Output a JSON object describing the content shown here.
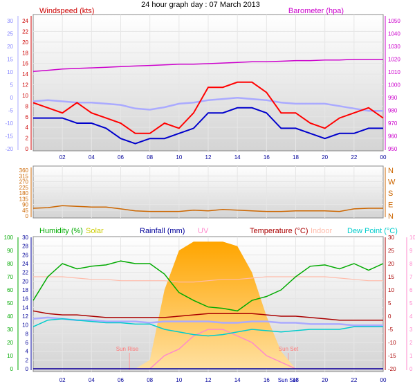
{
  "title": "24 hour graph day : 07 March 2013",
  "x_labels": [
    "02",
    "04",
    "06",
    "08",
    "10",
    "12",
    "14",
    "16",
    "18",
    "20",
    "22",
    "00"
  ],
  "chart_data": [
    {
      "type": "line",
      "labels": {
        "windspeed": "Windspeed (kts)",
        "barometer": "Barometer (hpa)"
      },
      "left_outer_ticks": [
        "30",
        "25",
        "20",
        "15",
        "10",
        "5",
        "0",
        "-5",
        "-10",
        "-15",
        "-20"
      ],
      "left_inner_ticks": [
        "24",
        "22",
        "20",
        "18",
        "16",
        "14",
        "12",
        "10",
        "8",
        "6",
        "4",
        "2",
        "0"
      ],
      "right_ticks": [
        "1050",
        "1040",
        "1030",
        "1020",
        "1010",
        "1000",
        "990",
        "980",
        "970",
        "960",
        "950"
      ],
      "ylim_wind": [
        0,
        25
      ],
      "ylim_baro": [
        946,
        1052
      ],
      "ylim_temp": [
        -22,
        32
      ],
      "colors": {
        "gust": "#ff0000",
        "average": "#0000cc",
        "barometer": "#cc00cc",
        "temperature": "#aaaaff"
      },
      "x": [
        0,
        1,
        2,
        3,
        4,
        5,
        6,
        7,
        8,
        9,
        10,
        11,
        12,
        13,
        14,
        15,
        16,
        17,
        18,
        19,
        20,
        21,
        22,
        23,
        24
      ],
      "series": [
        {
          "name": "gust",
          "values": [
            9,
            8,
            7,
            9,
            7,
            6,
            5,
            3,
            3,
            5,
            4,
            7,
            12,
            12,
            13,
            13,
            11,
            7,
            7,
            5,
            4,
            6,
            7,
            8,
            6
          ]
        },
        {
          "name": "average",
          "values": [
            6,
            6,
            6,
            5,
            5,
            4,
            2,
            1,
            2,
            2,
            3,
            4,
            7,
            7,
            8,
            8,
            7,
            4,
            4,
            3,
            2,
            3,
            3,
            4,
            4
          ]
        },
        {
          "name": "barometer",
          "values": [
            1010,
            1011,
            1012,
            1012.5,
            1013,
            1013.5,
            1014,
            1014.5,
            1015,
            1015.5,
            1016,
            1016,
            1016.5,
            1017,
            1017.5,
            1018,
            1018,
            1018.5,
            1019,
            1019,
            1019.5,
            1019.5,
            1020,
            1020,
            1020
          ]
        },
        {
          "name": "temperature",
          "values": [
            -2,
            -1.5,
            -2,
            -2.5,
            -2.5,
            -3,
            -3.5,
            -5,
            -5.5,
            -4.5,
            -3,
            -2.5,
            -1.5,
            -1,
            -0.5,
            -1,
            -1.5,
            -2.5,
            -3,
            -3,
            -3,
            -4,
            -5,
            -6,
            -6
          ]
        }
      ]
    },
    {
      "type": "line",
      "left_ticks": [
        "360",
        "315",
        "270",
        "225",
        "180",
        "135",
        "90",
        "45",
        "0"
      ],
      "right_ticks": [
        "N",
        "W",
        "S",
        "E",
        "N"
      ],
      "ylim": [
        0,
        360
      ],
      "colors": {
        "direction": "#cc6600"
      },
      "x": [
        0,
        1,
        2,
        3,
        4,
        5,
        6,
        7,
        8,
        9,
        10,
        11,
        12,
        13,
        14,
        15,
        16,
        17,
        18,
        19,
        20,
        21,
        22,
        23,
        24
      ],
      "series": [
        {
          "name": "direction",
          "values": [
            60,
            65,
            80,
            75,
            70,
            70,
            55,
            40,
            35,
            35,
            35,
            45,
            40,
            50,
            45,
            40,
            35,
            35,
            40,
            40,
            40,
            35,
            55,
            60,
            60
          ]
        }
      ]
    },
    {
      "type": "area",
      "labels": {
        "humidity": "Humidity (%)",
        "solar": "Solar",
        "rainfall": "Rainfall (mm)",
        "uv": "UV",
        "temperature": "Temperature (°C)",
        "indoor": "Indoor",
        "dewpoint": "Dew Point (°C)"
      },
      "annotations": {
        "sunrise": "Sun Rise",
        "sunset": "Sun Set",
        "axis_extra": "Sun Set"
      },
      "left_outer_ticks": [
        "100",
        "90",
        "80",
        "70",
        "60",
        "50",
        "40",
        "30",
        "20",
        "10",
        "0"
      ],
      "left_inner_ticks": [
        "30",
        "28",
        "26",
        "24",
        "22",
        "20",
        "18",
        "16",
        "14",
        "12",
        "10",
        "8",
        "6",
        "4",
        "2",
        "0"
      ],
      "right_inner_ticks": [
        "30",
        "25",
        "20",
        "15",
        "10",
        "5",
        "0",
        "-5",
        "-10",
        "-15",
        "-20"
      ],
      "right_outer_ticks": [
        "10",
        "9",
        "8",
        "7",
        "6",
        "5",
        "4",
        "3",
        "2",
        "1",
        "0"
      ],
      "ylim_humidity": [
        0,
        100
      ],
      "ylim_rain": [
        0,
        30
      ],
      "ylim_temp": [
        -20,
        30
      ],
      "colors": {
        "humidity": "#00aa00",
        "solar": "#ffa500",
        "rainfall": "#000099",
        "uv": "#ff88cc",
        "temperature": "#aa0000",
        "indoor": "#ffbbaa",
        "dewpoint": "#00cccc",
        "temp_light": "#aaaaff"
      },
      "x": [
        0,
        1,
        2,
        3,
        4,
        5,
        6,
        7,
        8,
        9,
        10,
        11,
        12,
        13,
        14,
        15,
        16,
        17,
        18,
        19,
        20,
        21,
        22,
        23,
        24
      ],
      "series": [
        {
          "name": "humidity",
          "values": [
            52,
            70,
            80,
            76,
            78,
            79,
            82,
            80,
            80,
            72,
            58,
            52,
            47,
            46,
            44,
            52,
            55,
            60,
            70,
            78,
            79,
            76,
            80,
            75,
            80
          ]
        },
        {
          "name": "temperature",
          "values": [
            2,
            1,
            0.5,
            0.5,
            0,
            -0.5,
            -0.5,
            -0.5,
            -0.5,
            -0.5,
            0,
            0.5,
            1,
            1,
            1,
            1,
            0.5,
            0,
            0,
            -0.5,
            -1,
            -1.5,
            -1.5,
            -1.5,
            -1.5
          ]
        },
        {
          "name": "indoor",
          "values": [
            15,
            15,
            15,
            14.5,
            14,
            14,
            13.5,
            13.5,
            13.5,
            13.5,
            13,
            13,
            13.5,
            14,
            14,
            14.5,
            15,
            15,
            15,
            15,
            15,
            14.5,
            14,
            13.5,
            13.5
          ]
        },
        {
          "name": "dewpoint",
          "values": [
            -4,
            -1.5,
            -1,
            -1.5,
            -2,
            -2.5,
            -2.5,
            -3,
            -3,
            -5,
            -6,
            -7,
            -7.5,
            -7,
            -6,
            -5,
            -5.5,
            -6,
            -5.5,
            -5,
            -5,
            -5,
            -4,
            -4,
            -4
          ]
        },
        {
          "name": "temp_light",
          "values": [
            -1,
            -0.5,
            -1,
            -1.5,
            -1.5,
            -2,
            -2,
            -2,
            -2.5,
            -2,
            -2,
            -2,
            -2,
            -2.5,
            -2.5,
            -2,
            -2,
            -2.5,
            -2.5,
            -3,
            -3,
            -3,
            -3.5,
            -3.5,
            -3.5
          ]
        },
        {
          "name": "solar",
          "values": [
            0,
            0,
            0,
            0,
            0,
            0,
            0,
            0,
            2,
            18,
            27,
            29,
            29,
            29,
            28,
            22,
            12,
            4,
            0,
            0,
            0,
            0,
            0,
            0,
            0
          ]
        },
        {
          "name": "uv",
          "values": [
            0,
            0,
            0,
            0,
            0,
            0,
            0,
            0,
            0,
            1,
            1.5,
            2.5,
            3,
            3,
            2.5,
            2,
            1,
            0.5,
            0,
            0,
            0,
            0,
            0,
            0,
            0
          ]
        },
        {
          "name": "rainfall",
          "values": [
            0,
            0,
            0,
            0,
            0,
            0,
            0,
            0,
            0,
            0,
            0,
            0,
            0,
            0,
            0,
            0,
            0,
            0,
            0,
            0,
            0,
            0,
            0,
            0,
            0
          ]
        }
      ]
    }
  ]
}
